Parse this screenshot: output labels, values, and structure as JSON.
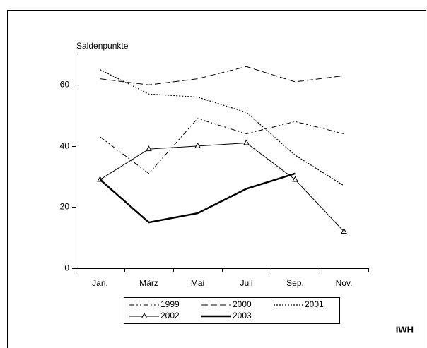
{
  "chart_data": {
    "type": "line",
    "ylabel": "Saldenpunkte",
    "source": "IWH",
    "categories": [
      "Jan.",
      "März",
      "Mai",
      "Juli",
      "Sep.",
      "Nov."
    ],
    "ylim": [
      0,
      70
    ],
    "yticks": [
      0,
      20,
      40,
      60
    ],
    "series": [
      {
        "name": "1999",
        "color": "#000000",
        "style": "dash-dot",
        "values": [
          43,
          31,
          49,
          44,
          48,
          44
        ]
      },
      {
        "name": "2000",
        "color": "#000000",
        "style": "dashed",
        "values": [
          62,
          60,
          62,
          66,
          61,
          63
        ]
      },
      {
        "name": "2001",
        "color": "#000000",
        "style": "dotted",
        "values": [
          65,
          57,
          56,
          51,
          37,
          27
        ]
      },
      {
        "name": "2002",
        "color": "#000000",
        "style": "solid",
        "marker": "triangle",
        "values": [
          29,
          39,
          40,
          41,
          29,
          12
        ]
      },
      {
        "name": "2003",
        "color": "#000000",
        "style": "thick",
        "values": [
          29,
          15,
          18,
          26,
          31,
          null
        ]
      }
    ]
  }
}
